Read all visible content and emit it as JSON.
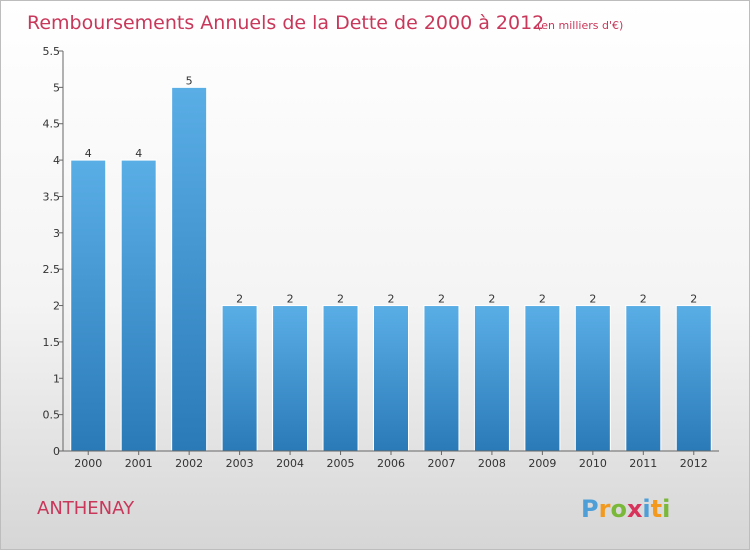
{
  "chart_data": {
    "type": "bar",
    "title": "Remboursements Annuels de la Dette de 2000 à 2012",
    "subtitle": "(en milliers d'€)",
    "categories": [
      "2000",
      "2001",
      "2002",
      "2003",
      "2004",
      "2005",
      "2006",
      "2007",
      "2008",
      "2009",
      "2010",
      "2011",
      "2012"
    ],
    "values": [
      4,
      4,
      5,
      2,
      2,
      2,
      2,
      2,
      2,
      2,
      2,
      2,
      2
    ],
    "data_labels": [
      "4",
      "4",
      "5",
      "2",
      "2",
      "2",
      "2",
      "2",
      "2",
      "2",
      "2",
      "2",
      "2"
    ],
    "y_ticks": [
      0,
      0.5,
      1,
      1.5,
      2,
      2.5,
      3,
      3.5,
      4,
      4.5,
      5,
      5.5
    ],
    "y_tick_labels": [
      "0",
      "0.5",
      "1",
      "1.5",
      "2",
      "2.5",
      "3",
      "3.5",
      "4",
      "4.5",
      "5",
      "5.5"
    ],
    "ylim": [
      0,
      5.5
    ],
    "grid": false,
    "bar_color_light": "#5aaee6",
    "bar_color_dark": "#2a7ab8"
  },
  "footer": {
    "place": "ANTHENAY",
    "logo": [
      "P",
      "r",
      "o",
      "x",
      "i",
      "t",
      "i"
    ],
    "logo_colors": [
      "#4e9fd8",
      "#f39a1e",
      "#7ab83a",
      "#d8335b",
      "#4e9fd8",
      "#f39a1e",
      "#7ab83a"
    ]
  }
}
